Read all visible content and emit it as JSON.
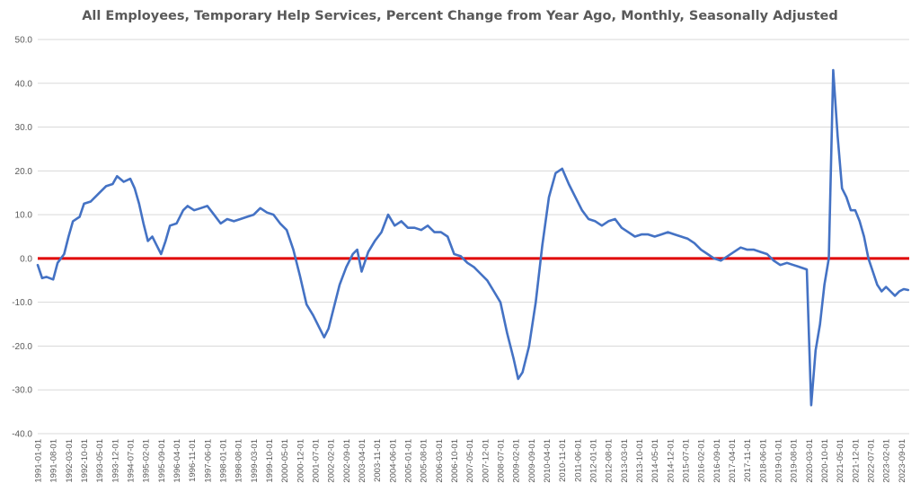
{
  "chart_data": {
    "type": "line",
    "title": "All Employees, Temporary Help Services, Percent Change from Year Ago, Monthly, Seasonally Adjusted",
    "xlabel": "",
    "ylabel": "",
    "ylim": [
      -40,
      50
    ],
    "y_ticks": [
      "50.0",
      "40.0",
      "30.0",
      "20.0",
      "10.0",
      "0.0",
      "-10.0",
      "-20.0",
      "-30.0",
      "-40.0"
    ],
    "x_ticks": [
      "1991-01-01",
      "1991-08-01",
      "1992-03-01",
      "1992-10-01",
      "1993-05-01",
      "1993-12-01",
      "1994-07-01",
      "1995-02-01",
      "1995-09-01",
      "1996-04-01",
      "1996-11-01",
      "1997-06-01",
      "1998-01-01",
      "1998-08-01",
      "1999-03-01",
      "1999-10-01",
      "2000-05-01",
      "2000-12-01",
      "2001-07-01",
      "2002-02-01",
      "2002-09-01",
      "2003-04-01",
      "2003-11-01",
      "2004-06-01",
      "2005-01-01",
      "2005-08-01",
      "2006-03-01",
      "2006-10-01",
      "2007-05-01",
      "2007-12-01",
      "2008-07-01",
      "2009-02-01",
      "2009-09-01",
      "2010-04-01",
      "2010-11-01",
      "2011-06-01",
      "2012-01-01",
      "2012-08-01",
      "2013-03-01",
      "2013-10-01",
      "2014-05-01",
      "2014-12-01",
      "2015-07-01",
      "2016-02-01",
      "2016-09-01",
      "2017-04-01",
      "2017-11-01",
      "2018-06-01",
      "2019-01-01",
      "2019-08-01",
      "2020-03-01",
      "2020-10-01",
      "2021-05-01",
      "2021-12-01",
      "2022-07-01",
      "2023-02-01",
      "2023-09-01"
    ],
    "grid": true,
    "legend": "none",
    "colors": {
      "series": "#4472C4",
      "zero_line": "#E00000",
      "grid": "#D9D9D9",
      "text": "#595959"
    },
    "series": [
      {
        "x": [
          "1991-01",
          "1991-03",
          "1991-05",
          "1991-08",
          "1991-10",
          "1992-01",
          "1992-03",
          "1992-05",
          "1992-08",
          "1992-10",
          "1993-01",
          "1993-05",
          "1993-08",
          "1993-11",
          "1994-01",
          "1994-04",
          "1994-07",
          "1994-09",
          "1994-11",
          "1995-01",
          "1995-03",
          "1995-05",
          "1995-07",
          "1995-09",
          "1995-11",
          "1996-01",
          "1996-04",
          "1996-07",
          "1996-09",
          "1996-12",
          "1997-03",
          "1997-06",
          "1997-09",
          "1997-12",
          "1998-03",
          "1998-06",
          "1998-09",
          "1998-12",
          "1999-03",
          "1999-06",
          "1999-09",
          "1999-12",
          "2000-03",
          "2000-06",
          "2000-09",
          "2000-12",
          "2001-03",
          "2001-06",
          "2001-09",
          "2001-11",
          "2002-01",
          "2002-03",
          "2002-06",
          "2002-09",
          "2002-12",
          "2003-02",
          "2003-04",
          "2003-07",
          "2003-10",
          "2004-01",
          "2004-04",
          "2004-07",
          "2004-10",
          "2005-01",
          "2005-04",
          "2005-07",
          "2005-10",
          "2006-01",
          "2006-04",
          "2006-07",
          "2006-10",
          "2007-01",
          "2007-04",
          "2007-07",
          "2007-10",
          "2008-01",
          "2008-04",
          "2008-07",
          "2008-10",
          "2009-01",
          "2009-03",
          "2009-05",
          "2009-08",
          "2009-11",
          "2010-02",
          "2010-05",
          "2010-08",
          "2010-11",
          "2011-02",
          "2011-05",
          "2011-08",
          "2011-11",
          "2012-02",
          "2012-05",
          "2012-08",
          "2012-11",
          "2013-02",
          "2013-05",
          "2013-08",
          "2013-11",
          "2014-02",
          "2014-05",
          "2014-08",
          "2014-11",
          "2015-02",
          "2015-05",
          "2015-08",
          "2015-11",
          "2016-02",
          "2016-05",
          "2016-08",
          "2016-11",
          "2017-02",
          "2017-05",
          "2017-08",
          "2017-11",
          "2018-02",
          "2018-05",
          "2018-08",
          "2018-11",
          "2019-02",
          "2019-05",
          "2019-08",
          "2019-11",
          "2020-02",
          "2020-04",
          "2020-06",
          "2020-08",
          "2020-10",
          "2020-12",
          "2021-02",
          "2021-04",
          "2021-06",
          "2021-08",
          "2021-10",
          "2021-12",
          "2022-02",
          "2022-04",
          "2022-06",
          "2022-08",
          "2022-10",
          "2022-12",
          "2023-02",
          "2023-04",
          "2023-06",
          "2023-08",
          "2023-10",
          "2023-12"
        ],
        "values": [
          -1.5,
          -4.5,
          -4.2,
          -4.8,
          -1.0,
          1.0,
          5.0,
          8.5,
          9.5,
          12.5,
          13.0,
          15.0,
          16.5,
          17.0,
          18.8,
          17.5,
          18.2,
          16.0,
          12.5,
          8.0,
          4.0,
          5.0,
          3.0,
          1.0,
          4.0,
          7.5,
          8.0,
          11.0,
          12.0,
          11.0,
          11.5,
          12.0,
          10.0,
          8.0,
          9.0,
          8.5,
          9.0,
          9.5,
          10.0,
          11.5,
          10.5,
          10.0,
          8.0,
          6.5,
          2.0,
          -4.0,
          -10.5,
          -13.0,
          -16.0,
          -18.0,
          -16.0,
          -12.0,
          -6.0,
          -2.0,
          1.0,
          2.0,
          -3.0,
          1.5,
          4.0,
          6.0,
          10.0,
          7.5,
          8.5,
          7.0,
          7.0,
          6.5,
          7.5,
          6.0,
          6.0,
          5.0,
          1.0,
          0.5,
          -1.0,
          -2.0,
          -3.5,
          -5.0,
          -7.5,
          -10.0,
          -17.0,
          -23.0,
          -27.5,
          -26.0,
          -20.0,
          -10.0,
          3.0,
          14.0,
          19.5,
          20.5,
          17.0,
          14.0,
          11.0,
          9.0,
          8.5,
          7.5,
          8.5,
          9.0,
          7.0,
          6.0,
          5.0,
          5.5,
          5.5,
          5.0,
          5.5,
          6.0,
          5.5,
          5.0,
          4.5,
          3.5,
          2.0,
          1.0,
          0.0,
          -0.5,
          0.5,
          1.5,
          2.5,
          2.0,
          2.0,
          1.5,
          1.0,
          -0.5,
          -1.5,
          -1.0,
          -1.5,
          -2.0,
          -2.5,
          -33.5,
          -21.0,
          -15.0,
          -6.0,
          0.0,
          43.0,
          28.0,
          16.0,
          14.0,
          11.0,
          11.0,
          8.5,
          5.0,
          0.0,
          -3.0,
          -6.0,
          -7.5,
          -6.5,
          -7.5,
          -8.5,
          -7.5,
          -7.0,
          -7.2
        ]
      }
    ]
  }
}
